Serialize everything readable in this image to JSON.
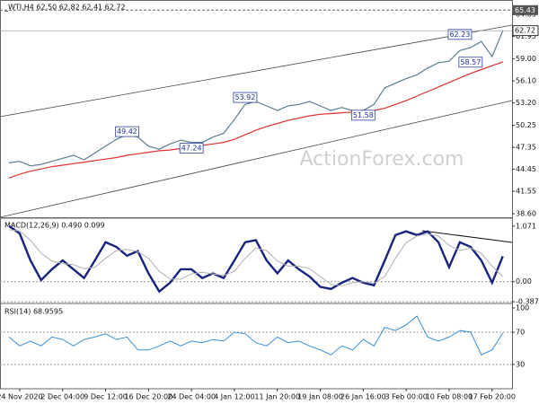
{
  "chart_data": [
    {
      "type": "line",
      "title": "_WTI,H4  62.50 62.82 62.41 62.72",
      "watermark": "ActionForex.com",
      "ylim": [
        38.25,
        66.53
      ],
      "yticks": [
        64.85,
        61.95,
        {
          "value": 59,
          "label": "59.00"
        },
        {
          "value": 56.1,
          "label": "56.10"
        },
        {
          "value": 53.2,
          "label": "53.20"
        },
        50.25,
        47.35,
        44.45,
        41.55,
        {
          "value": 38.6,
          "label": "38.60"
        }
      ],
      "resistance": 65.43,
      "last": 62.72,
      "level_labels": [
        49.42,
        47.24,
        53.92,
        51.58,
        62.23,
        58.57
      ],
      "series": [
        {
          "color": "#5b7d90",
          "values": [
            45.3,
            45.5,
            44.9,
            45.1,
            45.5,
            45.9,
            46.3,
            45.7,
            46.6,
            47.5,
            48.4,
            49.0,
            48.7,
            47.5,
            47.1,
            47.8,
            48.3,
            48.0,
            48.0,
            48.7,
            49.2,
            51.0,
            53.0,
            53.4,
            52.8,
            52.2,
            52.8,
            53.0,
            53.4,
            52.8,
            52.2,
            52.6,
            52.2,
            52.2,
            53.0,
            55.2,
            55.8,
            56.4,
            56.9,
            57.8,
            58.5,
            58.7,
            60.1,
            60.5,
            61.3,
            59.3,
            62.72
          ]
        },
        {
          "color": "#e03030",
          "values": [
            43.3,
            43.8,
            44.2,
            44.5,
            44.8,
            45.0,
            45.2,
            45.4,
            45.6,
            45.8,
            46.0,
            46.3,
            46.5,
            46.7,
            46.9,
            47.0,
            47.2,
            47.4,
            47.6,
            47.8,
            48.0,
            48.4,
            49.0,
            49.6,
            50.1,
            50.5,
            50.9,
            51.2,
            51.5,
            51.7,
            51.8,
            51.9,
            52.0,
            52.1,
            52.2,
            52.5,
            53.0,
            53.5,
            54.1,
            54.7,
            55.3,
            55.9,
            56.5,
            57.1,
            57.6,
            58.1,
            58.6
          ]
        }
      ]
    },
    {
      "type": "line",
      "title": "MACD(12,26,9) 0.490 0.099",
      "ylim": [
        -0.42,
        1.19
      ],
      "yticks": [
        1.071,
        {
          "value": 0,
          "label": "0.00"
        },
        -0.387
      ],
      "series": [
        {
          "color": "#1a237e",
          "width": 2.4,
          "values": [
            1.07,
            0.93,
            0.41,
            0.03,
            0.24,
            0.41,
            0.24,
            0.07,
            0.41,
            0.76,
            0.67,
            0.5,
            0.59,
            0.16,
            -0.19,
            -0.02,
            0.24,
            0.24,
            0.07,
            0.16,
            0.07,
            0.41,
            0.76,
            0.8,
            0.41,
            0.16,
            0.41,
            0.24,
            0.1,
            -0.1,
            -0.14,
            -0.02,
            0.07,
            -0.02,
            -0.07,
            0.41,
            0.9,
            0.97,
            0.9,
            0.97,
            0.76,
            0.28,
            0.76,
            0.67,
            0.41,
            -0.02,
            0.49
          ]
        },
        {
          "color": "#b0b0b0",
          "width": 1,
          "values": [
            1.0,
            0.98,
            0.8,
            0.55,
            0.4,
            0.35,
            0.33,
            0.25,
            0.28,
            0.45,
            0.6,
            0.62,
            0.58,
            0.45,
            0.2,
            0.05,
            0.05,
            0.15,
            0.18,
            0.15,
            0.12,
            0.2,
            0.45,
            0.65,
            0.6,
            0.4,
            0.3,
            0.3,
            0.25,
            0.1,
            -0.05,
            -0.08,
            -0.02,
            0,
            -0.03,
            0.1,
            0.45,
            0.75,
            0.88,
            0.92,
            0.88,
            0.7,
            0.6,
            0.65,
            0.55,
            0.3,
            0.099
          ]
        }
      ]
    },
    {
      "type": "line",
      "title": "RSI(14) 68.9595",
      "ylim": [
        0,
        100
      ],
      "yticks": [
        100,
        70,
        30
      ],
      "categories": [
        null,
        "24 Nov 2020",
        null,
        null,
        null,
        "2 Dec 04:00",
        null,
        null,
        null,
        "9 Dec 12:00",
        null,
        null,
        null,
        "16 Dec 20:00",
        null,
        null,
        null,
        "24 Dec 04:00",
        null,
        null,
        null,
        "4 Jan 12:00",
        null,
        null,
        null,
        "11 Jan 20:00",
        null,
        null,
        null,
        "19 Jan 08:00",
        null,
        null,
        null,
        "26 Jan 16:00",
        null,
        null,
        null,
        "3 Feb 00:00",
        null,
        null,
        null,
        "10 Feb 08:00",
        null,
        null,
        null,
        "17 Feb 20:00",
        null
      ],
      "series": [
        {
          "color": "#3a8fd8",
          "width": 1,
          "values": [
            64,
            53,
            59,
            53,
            64,
            61,
            53,
            61,
            64,
            68,
            61,
            64,
            48,
            48,
            53,
            59,
            53,
            59,
            57,
            61,
            59,
            70,
            68,
            57,
            53,
            64,
            57,
            59,
            53,
            48,
            42,
            53,
            48,
            61,
            53,
            76,
            72,
            79,
            90,
            64,
            59,
            64,
            72,
            70,
            42,
            48,
            69
          ]
        }
      ]
    }
  ]
}
